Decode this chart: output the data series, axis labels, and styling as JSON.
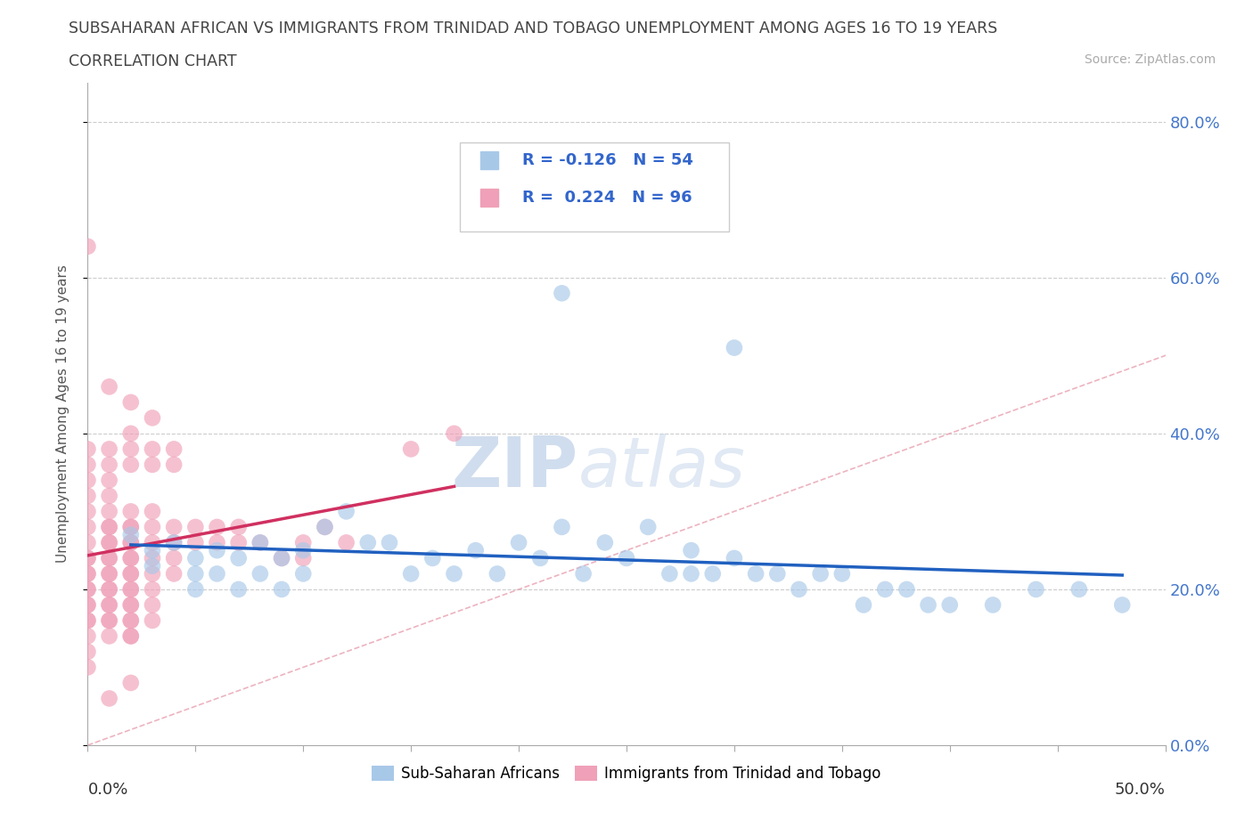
{
  "title_line1": "SUBSAHARAN AFRICAN VS IMMIGRANTS FROM TRINIDAD AND TOBAGO UNEMPLOYMENT AMONG AGES 16 TO 19 YEARS",
  "title_line2": "CORRELATION CHART",
  "source_text": "Source: ZipAtlas.com",
  "ylabel": "Unemployment Among Ages 16 to 19 years",
  "legend1_label": "Sub-Saharan Africans",
  "legend2_label": "Immigrants from Trinidad and Tobago",
  "r1": -0.126,
  "n1": 54,
  "r2": 0.224,
  "n2": 96,
  "blue_color": "#a8c8e8",
  "pink_color": "#f0a0b8",
  "blue_line_color": "#2060c0",
  "pink_line_color": "#d03060",
  "diag_color": "#e8a0b0",
  "xlim": [
    0.0,
    0.5
  ],
  "ylim": [
    0.0,
    0.85
  ],
  "yticks": [
    0.0,
    0.2,
    0.4,
    0.6,
    0.8
  ],
  "watermark_zip": "ZIP",
  "watermark_atlas": "atlas",
  "blue_x": [
    0.02,
    0.03,
    0.03,
    0.04,
    0.05,
    0.05,
    0.05,
    0.06,
    0.06,
    0.07,
    0.07,
    0.08,
    0.08,
    0.09,
    0.09,
    0.1,
    0.1,
    0.11,
    0.12,
    0.13,
    0.14,
    0.15,
    0.16,
    0.17,
    0.18,
    0.19,
    0.2,
    0.21,
    0.22,
    0.23,
    0.24,
    0.25,
    0.26,
    0.27,
    0.28,
    0.28,
    0.29,
    0.3,
    0.31,
    0.32,
    0.33,
    0.34,
    0.35,
    0.36,
    0.37,
    0.38,
    0.39,
    0.4,
    0.42,
    0.44,
    0.46,
    0.48,
    0.22,
    0.3
  ],
  "blue_y": [
    0.27,
    0.25,
    0.23,
    0.26,
    0.22,
    0.24,
    0.2,
    0.25,
    0.22,
    0.24,
    0.2,
    0.26,
    0.22,
    0.24,
    0.2,
    0.25,
    0.22,
    0.28,
    0.3,
    0.26,
    0.26,
    0.22,
    0.24,
    0.22,
    0.25,
    0.22,
    0.26,
    0.24,
    0.28,
    0.22,
    0.26,
    0.24,
    0.28,
    0.22,
    0.25,
    0.22,
    0.22,
    0.24,
    0.22,
    0.22,
    0.2,
    0.22,
    0.22,
    0.18,
    0.2,
    0.2,
    0.18,
    0.18,
    0.18,
    0.2,
    0.2,
    0.18,
    0.58,
    0.51
  ],
  "pink_x": [
    0.0,
    0.0,
    0.0,
    0.0,
    0.0,
    0.0,
    0.0,
    0.0,
    0.0,
    0.0,
    0.0,
    0.0,
    0.0,
    0.0,
    0.0,
    0.0,
    0.0,
    0.0,
    0.0,
    0.0,
    0.01,
    0.01,
    0.01,
    0.01,
    0.01,
    0.01,
    0.01,
    0.01,
    0.01,
    0.01,
    0.01,
    0.01,
    0.01,
    0.01,
    0.01,
    0.01,
    0.01,
    0.01,
    0.01,
    0.01,
    0.02,
    0.02,
    0.02,
    0.02,
    0.02,
    0.02,
    0.02,
    0.02,
    0.02,
    0.02,
    0.02,
    0.02,
    0.02,
    0.02,
    0.02,
    0.02,
    0.02,
    0.02,
    0.02,
    0.02,
    0.03,
    0.03,
    0.03,
    0.03,
    0.03,
    0.03,
    0.03,
    0.03,
    0.03,
    0.03,
    0.04,
    0.04,
    0.04,
    0.04,
    0.04,
    0.04,
    0.05,
    0.05,
    0.06,
    0.06,
    0.07,
    0.07,
    0.08,
    0.09,
    0.1,
    0.1,
    0.11,
    0.12,
    0.15,
    0.17,
    0.0,
    0.01,
    0.02,
    0.03,
    0.02,
    0.01
  ],
  "pink_y": [
    0.28,
    0.26,
    0.24,
    0.22,
    0.2,
    0.18,
    0.16,
    0.3,
    0.32,
    0.34,
    0.36,
    0.38,
    0.24,
    0.22,
    0.2,
    0.18,
    0.16,
    0.14,
    0.12,
    0.1,
    0.3,
    0.28,
    0.26,
    0.24,
    0.22,
    0.2,
    0.18,
    0.16,
    0.34,
    0.32,
    0.24,
    0.22,
    0.2,
    0.18,
    0.16,
    0.14,
    0.36,
    0.38,
    0.28,
    0.26,
    0.3,
    0.28,
    0.26,
    0.24,
    0.22,
    0.2,
    0.18,
    0.16,
    0.14,
    0.36,
    0.38,
    0.4,
    0.28,
    0.26,
    0.24,
    0.22,
    0.2,
    0.18,
    0.16,
    0.14,
    0.3,
    0.28,
    0.26,
    0.24,
    0.22,
    0.2,
    0.18,
    0.16,
    0.36,
    0.38,
    0.28,
    0.26,
    0.24,
    0.22,
    0.36,
    0.38,
    0.28,
    0.26,
    0.28,
    0.26,
    0.28,
    0.26,
    0.26,
    0.24,
    0.26,
    0.24,
    0.28,
    0.26,
    0.38,
    0.4,
    0.64,
    0.46,
    0.44,
    0.42,
    0.08,
    0.06
  ]
}
